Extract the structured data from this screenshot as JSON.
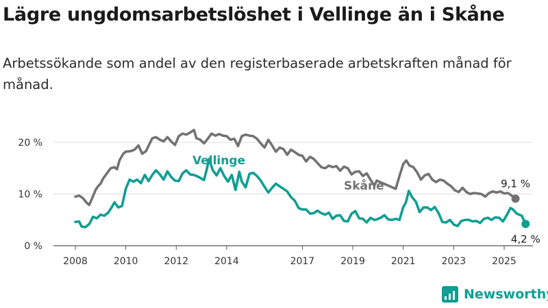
{
  "header": {
    "title": "Lägre ungdomsarbetslöshet i Vellinge än i Skåne",
    "subtitle": "Arbetssökande som andel av den registerbaserade arbetskraften månad för månad."
  },
  "brand": {
    "name": "Newsworthy"
  },
  "chart_data": {
    "type": "line",
    "title": "Lägre ungdomsarbetslöshet i Vellinge än i Skåne",
    "subtitle": "Arbetssökande som andel av den registerbaserade arbetskraften månad för månad.",
    "xlabel": "",
    "ylabel": "",
    "ylim": [
      0,
      22
    ],
    "xlim": [
      2008.0,
      2025.7
    ],
    "grid": true,
    "legend": "inline labels",
    "yticks": [
      {
        "value": 0,
        "label": "0 %"
      },
      {
        "value": 10,
        "label": "10 %"
      },
      {
        "value": 20,
        "label": "20 %"
      }
    ],
    "xticks": [
      {
        "value": 2008,
        "label": "2008"
      },
      {
        "value": 2010,
        "label": "2010"
      },
      {
        "value": 2012,
        "label": "2012"
      },
      {
        "value": 2014,
        "label": "2014"
      },
      {
        "value": 2017,
        "label": "2017"
      },
      {
        "value": 2019,
        "label": "2019"
      },
      {
        "value": 2021,
        "label": "2021"
      },
      {
        "value": 2023,
        "label": "2023"
      },
      {
        "value": 2025,
        "label": "2025"
      }
    ],
    "series": [
      {
        "name": "Skåne",
        "color": "#727272",
        "end_label": "9,1 %",
        "points": [
          [
            2008.0,
            9.5
          ],
          [
            2008.15,
            9.7
          ],
          [
            2008.3,
            9.2
          ],
          [
            2008.45,
            8.3
          ],
          [
            2008.55,
            7.9
          ],
          [
            2008.65,
            9.0
          ],
          [
            2008.8,
            10.8
          ],
          [
            2008.9,
            11.5
          ],
          [
            2009.0,
            12.0
          ],
          [
            2009.1,
            13.0
          ],
          [
            2009.25,
            14.0
          ],
          [
            2009.4,
            15.0
          ],
          [
            2009.55,
            15.2
          ],
          [
            2009.65,
            14.8
          ],
          [
            2009.75,
            16.5
          ],
          [
            2009.9,
            17.8
          ],
          [
            2010.0,
            18.2
          ],
          [
            2010.2,
            18.3
          ],
          [
            2010.35,
            18.6
          ],
          [
            2010.5,
            19.4
          ],
          [
            2010.65,
            17.8
          ],
          [
            2010.8,
            18.3
          ],
          [
            2010.95,
            19.8
          ],
          [
            2011.05,
            20.8
          ],
          [
            2011.2,
            21.0
          ],
          [
            2011.35,
            20.5
          ],
          [
            2011.5,
            20.2
          ],
          [
            2011.65,
            21.0
          ],
          [
            2011.8,
            20.2
          ],
          [
            2011.95,
            19.5
          ],
          [
            2012.1,
            21.2
          ],
          [
            2012.25,
            21.7
          ],
          [
            2012.4,
            21.5
          ],
          [
            2012.55,
            21.9
          ],
          [
            2012.7,
            22.4
          ],
          [
            2012.8,
            20.8
          ],
          [
            2012.95,
            20.5
          ],
          [
            2013.1,
            19.8
          ],
          [
            2013.25,
            20.7
          ],
          [
            2013.4,
            21.7
          ],
          [
            2013.55,
            21.3
          ],
          [
            2013.7,
            21.6
          ],
          [
            2013.85,
            21.3
          ],
          [
            2014.0,
            21.2
          ],
          [
            2014.15,
            20.5
          ],
          [
            2014.3,
            20.7
          ],
          [
            2014.45,
            19.3
          ],
          [
            2014.6,
            21.2
          ],
          [
            2014.75,
            21.5
          ],
          [
            2014.9,
            21.3
          ],
          [
            2015.05,
            21.2
          ],
          [
            2015.2,
            20.7
          ],
          [
            2015.35,
            19.8
          ],
          [
            2015.5,
            19.0
          ],
          [
            2015.65,
            20.5
          ],
          [
            2015.8,
            19.4
          ],
          [
            2015.95,
            18.2
          ],
          [
            2016.1,
            19.0
          ],
          [
            2016.25,
            18.7
          ],
          [
            2016.4,
            17.6
          ],
          [
            2016.55,
            18.6
          ],
          [
            2016.7,
            18.1
          ],
          [
            2016.85,
            17.6
          ],
          [
            2017.0,
            17.4
          ],
          [
            2017.15,
            16.3
          ],
          [
            2017.3,
            17.2
          ],
          [
            2017.45,
            16.8
          ],
          [
            2017.6,
            16.0
          ],
          [
            2017.75,
            15.2
          ],
          [
            2017.9,
            15.0
          ],
          [
            2018.05,
            15.5
          ],
          [
            2018.2,
            15.2
          ],
          [
            2018.35,
            15.4
          ],
          [
            2018.5,
            14.5
          ],
          [
            2018.65,
            15.3
          ],
          [
            2018.8,
            15.0
          ],
          [
            2018.95,
            13.8
          ],
          [
            2019.1,
            14.3
          ],
          [
            2019.25,
            14.4
          ],
          [
            2019.4,
            13.5
          ],
          [
            2019.55,
            14.0
          ],
          [
            2019.7,
            12.8
          ],
          [
            2019.85,
            11.6
          ],
          [
            2019.95,
            12.6
          ],
          [
            2020.7,
            11.0
          ],
          [
            2020.85,
            13.5
          ],
          [
            2021.0,
            15.8
          ],
          [
            2021.12,
            16.5
          ],
          [
            2021.25,
            15.5
          ],
          [
            2021.4,
            15.2
          ],
          [
            2021.55,
            14.2
          ],
          [
            2021.7,
            12.8
          ],
          [
            2021.85,
            13.6
          ],
          [
            2022.0,
            13.9
          ],
          [
            2022.15,
            12.8
          ],
          [
            2022.3,
            12.3
          ],
          [
            2022.45,
            12.8
          ],
          [
            2022.6,
            12.6
          ],
          [
            2022.75,
            12.0
          ],
          [
            2022.9,
            11.5
          ],
          [
            2023.05,
            10.7
          ],
          [
            2023.2,
            10.4
          ],
          [
            2023.35,
            11.2
          ],
          [
            2023.5,
            10.4
          ],
          [
            2023.65,
            10.0
          ],
          [
            2023.8,
            10.2
          ],
          [
            2023.95,
            10.1
          ],
          [
            2024.1,
            10.0
          ],
          [
            2024.25,
            9.5
          ],
          [
            2024.4,
            10.2
          ],
          [
            2024.55,
            10.5
          ],
          [
            2024.7,
            10.3
          ],
          [
            2024.85,
            10.5
          ],
          [
            2025.0,
            10.1
          ],
          [
            2025.15,
            10.2
          ],
          [
            2025.3,
            9.7
          ],
          [
            2025.45,
            9.1
          ]
        ]
      },
      {
        "name": "Vellinge",
        "color": "#0f9e93",
        "end_label": "4,2 %",
        "points": [
          [
            2008.0,
            4.6
          ],
          [
            2008.15,
            4.7
          ],
          [
            2008.25,
            3.7
          ],
          [
            2008.4,
            3.6
          ],
          [
            2008.55,
            4.2
          ],
          [
            2008.7,
            5.6
          ],
          [
            2008.85,
            5.3
          ],
          [
            2009.0,
            6.0
          ],
          [
            2009.15,
            5.8
          ],
          [
            2009.3,
            6.4
          ],
          [
            2009.45,
            7.5
          ],
          [
            2009.55,
            8.4
          ],
          [
            2009.7,
            7.4
          ],
          [
            2009.85,
            7.7
          ],
          [
            2010.0,
            11.0
          ],
          [
            2010.15,
            12.8
          ],
          [
            2010.3,
            12.4
          ],
          [
            2010.45,
            12.8
          ],
          [
            2010.6,
            12.1
          ],
          [
            2010.75,
            13.7
          ],
          [
            2010.9,
            12.5
          ],
          [
            2011.05,
            13.7
          ],
          [
            2011.2,
            14.6
          ],
          [
            2011.35,
            13.8
          ],
          [
            2011.5,
            12.8
          ],
          [
            2011.65,
            14.4
          ],
          [
            2011.8,
            13.3
          ],
          [
            2011.95,
            12.6
          ],
          [
            2012.1,
            12.5
          ],
          [
            2012.25,
            14.0
          ],
          [
            2012.4,
            14.6
          ],
          [
            2012.55,
            13.8
          ],
          [
            2012.7,
            13.7
          ],
          [
            2012.85,
            13.4
          ],
          [
            2013.0,
            13.0
          ],
          [
            2013.1,
            12.7
          ],
          [
            2013.2,
            14.6
          ],
          [
            2013.3,
            16.8
          ],
          [
            2013.45,
            14.6
          ],
          [
            2013.6,
            13.6
          ],
          [
            2013.75,
            15.0
          ],
          [
            2013.9,
            13.5
          ],
          [
            2014.05,
            12.4
          ],
          [
            2014.2,
            13.7
          ],
          [
            2014.35,
            10.8
          ],
          [
            2014.5,
            14.3
          ],
          [
            2014.6,
            12.4
          ],
          [
            2014.75,
            11.3
          ],
          [
            2014.9,
            13.9
          ],
          [
            2015.05,
            14.1
          ],
          [
            2015.2,
            13.5
          ],
          [
            2015.35,
            12.6
          ],
          [
            2015.5,
            11.4
          ],
          [
            2015.65,
            10.3
          ],
          [
            2015.8,
            11.2
          ],
          [
            2015.95,
            12.0
          ],
          [
            2016.1,
            11.5
          ],
          [
            2016.25,
            11.0
          ],
          [
            2016.4,
            10.5
          ],
          [
            2016.55,
            9.4
          ],
          [
            2016.7,
            8.7
          ],
          [
            2016.85,
            7.3
          ],
          [
            2017.0,
            7.0
          ],
          [
            2017.15,
            7.0
          ],
          [
            2017.3,
            6.2
          ],
          [
            2017.45,
            6.3
          ],
          [
            2017.6,
            6.8
          ],
          [
            2017.75,
            6.3
          ],
          [
            2017.9,
            6.0
          ],
          [
            2018.05,
            6.4
          ],
          [
            2018.2,
            5.2
          ],
          [
            2018.35,
            5.8
          ],
          [
            2018.5,
            5.9
          ],
          [
            2018.65,
            4.8
          ],
          [
            2018.8,
            4.7
          ],
          [
            2018.95,
            6.2
          ],
          [
            2019.1,
            6.7
          ],
          [
            2019.25,
            5.3
          ],
          [
            2019.4,
            5.2
          ],
          [
            2019.55,
            4.5
          ],
          [
            2019.7,
            5.4
          ],
          [
            2019.85,
            5.0
          ],
          [
            2019.95,
            5.1
          ],
          [
            2020.1,
            5.4
          ],
          [
            2020.25,
            5.9
          ],
          [
            2020.4,
            5.1
          ],
          [
            2020.55,
            5.0
          ],
          [
            2020.7,
            5.2
          ],
          [
            2020.85,
            5.0
          ],
          [
            2021.0,
            7.5
          ],
          [
            2021.1,
            8.3
          ],
          [
            2021.22,
            10.6
          ],
          [
            2021.35,
            9.4
          ],
          [
            2021.5,
            8.5
          ],
          [
            2021.65,
            6.5
          ],
          [
            2021.8,
            7.4
          ],
          [
            2021.95,
            7.4
          ],
          [
            2022.1,
            6.9
          ],
          [
            2022.25,
            7.5
          ],
          [
            2022.4,
            6.3
          ],
          [
            2022.55,
            4.6
          ],
          [
            2022.7,
            4.5
          ],
          [
            2022.85,
            5.0
          ],
          [
            2023.0,
            4.1
          ],
          [
            2023.15,
            3.8
          ],
          [
            2023.3,
            4.8
          ],
          [
            2023.45,
            5.0
          ],
          [
            2023.6,
            5.0
          ],
          [
            2023.75,
            4.7
          ],
          [
            2023.9,
            4.8
          ],
          [
            2024.05,
            4.4
          ],
          [
            2024.2,
            5.2
          ],
          [
            2024.35,
            5.4
          ],
          [
            2024.5,
            5.0
          ],
          [
            2024.65,
            5.5
          ],
          [
            2024.8,
            5.4
          ],
          [
            2024.95,
            4.7
          ],
          [
            2025.1,
            5.9
          ],
          [
            2025.25,
            7.3
          ],
          [
            2025.35,
            7.0
          ],
          [
            2025.5,
            6.2
          ],
          [
            2025.7,
            5.8
          ],
          [
            2025.85,
            4.2
          ]
        ]
      }
    ]
  }
}
